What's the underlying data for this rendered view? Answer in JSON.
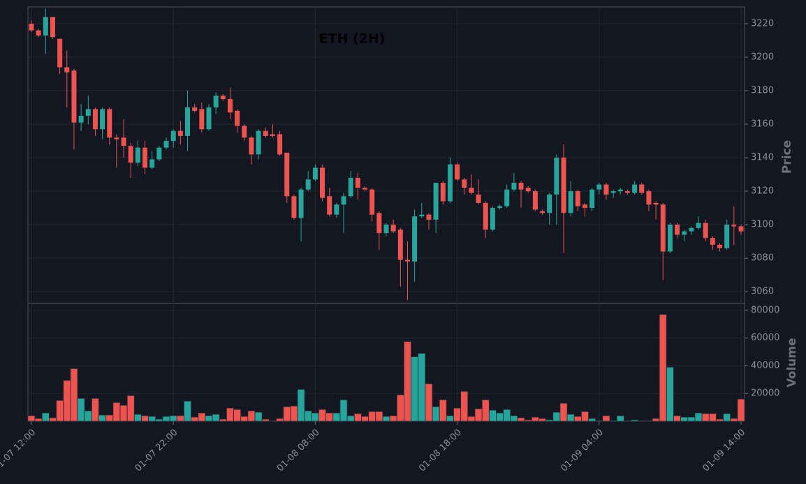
{
  "chart_data": {
    "type": "candlestick",
    "title": "ETH (2H)",
    "categories": [
      "01-07 12:00",
      null,
      null,
      null,
      null,
      null,
      null,
      null,
      null,
      null,
      null,
      null,
      null,
      null,
      null,
      null,
      null,
      null,
      null,
      null,
      "01-07 22:00",
      null,
      null,
      null,
      null,
      null,
      null,
      null,
      null,
      null,
      null,
      null,
      null,
      null,
      null,
      null,
      null,
      null,
      null,
      null,
      "01-08 08:00",
      null,
      null,
      null,
      null,
      null,
      null,
      null,
      null,
      null,
      null,
      null,
      null,
      null,
      null,
      null,
      null,
      null,
      null,
      null,
      "01-08 18:00",
      null,
      null,
      null,
      null,
      null,
      null,
      null,
      null,
      null,
      null,
      null,
      null,
      null,
      null,
      null,
      null,
      null,
      null,
      null,
      "01-09 04:00",
      null,
      null,
      null,
      null,
      null,
      null,
      null,
      null,
      null,
      null,
      null,
      null,
      null,
      null,
      null,
      null,
      null,
      null,
      null,
      "01-09 14:00"
    ],
    "open": [
      3220,
      3216,
      3213,
      3224,
      3211,
      3194,
      3192,
      3161,
      3165,
      3169,
      3157,
      3169,
      3152,
      3152,
      3147,
      3137,
      3146,
      3134,
      3139,
      3146,
      3150,
      3156,
      3153,
      3170,
      3169,
      3157,
      3170,
      3177,
      3175,
      3168,
      3159,
      3152,
      3142,
      3156,
      3154,
      3154,
      3143,
      3117,
      3104,
      3121,
      3127,
      3134,
      3117,
      3106,
      3112,
      3117,
      3128,
      3122,
      3121,
      3107,
      3095,
      3100,
      3097,
      3079,
      3078,
      3105,
      3106,
      3103,
      3125,
      3114,
      3136,
      3127,
      3122,
      3118,
      3113,
      3097,
      3110,
      3111,
      3121,
      3125,
      3122,
      3120,
      3108,
      3107,
      3118,
      3140,
      3107,
      3120,
      3112,
      3110,
      3121,
      3124,
      3119,
      3120,
      3120,
      3119,
      3124,
      3120,
      3113,
      3112,
      3084,
      3100,
      3094,
      3096,
      3098,
      3101,
      3092,
      3088,
      3086,
      3100,
      3099
    ],
    "high": [
      3222,
      3217,
      3229,
      3224,
      3211,
      3204,
      3193,
      3172,
      3177,
      3170,
      3170,
      3170,
      3154,
      3163,
      3149,
      3150,
      3150,
      3144,
      3147,
      3152,
      3157,
      3162,
      3180,
      3172,
      3173,
      3172,
      3179,
      3178,
      3182,
      3169,
      3160,
      3153,
      3157,
      3158,
      3160,
      3156,
      3143,
      3118,
      3122,
      3132,
      3136,
      3136,
      3122,
      3113,
      3119,
      3132,
      3131,
      3123,
      3122,
      3108,
      3101,
      3103,
      3098,
      3090,
      3109,
      3113,
      3107,
      3125,
      3126,
      3140,
      3137,
      3128,
      3130,
      3127,
      3114,
      3111,
      3112,
      3124,
      3131,
      3126,
      3123,
      3121,
      3109,
      3119,
      3142,
      3148,
      3126,
      3121,
      3113,
      3122,
      3125,
      3125,
      3121,
      3122,
      3121,
      3126,
      3125,
      3121,
      3114,
      3113,
      3101,
      3101,
      3097,
      3099,
      3105,
      3103,
      3093,
      3089,
      3103,
      3111,
      3100
    ],
    "low": [
      3215,
      3212,
      3202,
      3211,
      3190,
      3170,
      3145,
      3156,
      3160,
      3153,
      3151,
      3148,
      3134,
      3140,
      3128,
      3135,
      3130,
      3133,
      3138,
      3145,
      3146,
      3148,
      3144,
      3167,
      3155,
      3156,
      3166,
      3174,
      3163,
      3155,
      3150,
      3136,
      3139,
      3152,
      3152,
      3141,
      3113,
      3103,
      3090,
      3120,
      3126,
      3114,
      3105,
      3104,
      3095,
      3116,
      3115,
      3120,
      3102,
      3085,
      3093,
      3095,
      3063,
      3055,
      3066,
      3104,
      3097,
      3095,
      3112,
      3113,
      3126,
      3118,
      3118,
      3112,
      3092,
      3096,
      3109,
      3110,
      3120,
      3110,
      3119,
      3108,
      3106,
      3100,
      3100,
      3083,
      3105,
      3108,
      3105,
      3108,
      3118,
      3115,
      3116,
      3118,
      3118,
      3118,
      3118,
      3108,
      3103,
      3067,
      3083,
      3092,
      3090,
      3094,
      3097,
      3090,
      3085,
      3084,
      3085,
      3088,
      3094
    ],
    "close": [
      3216,
      3213,
      3224,
      3212,
      3194,
      3191,
      3161,
      3165,
      3169,
      3157,
      3169,
      3152,
      3151,
      3147,
      3137,
      3146,
      3134,
      3139,
      3146,
      3150,
      3156,
      3153,
      3170,
      3168,
      3157,
      3170,
      3177,
      3175,
      3167,
      3159,
      3152,
      3142,
      3156,
      3153,
      3153,
      3142,
      3117,
      3104,
      3121,
      3127,
      3134,
      3116,
      3106,
      3112,
      3117,
      3128,
      3122,
      3121,
      3106,
      3095,
      3100,
      3096,
      3079,
      3078,
      3105,
      3106,
      3103,
      3125,
      3114,
      3136,
      3127,
      3122,
      3119,
      3113,
      3097,
      3110,
      3111,
      3121,
      3125,
      3121,
      3120,
      3109,
      3107,
      3118,
      3140,
      3107,
      3120,
      3111,
      3110,
      3121,
      3124,
      3118,
      3120,
      3121,
      3119,
      3124,
      3119,
      3112,
      3112,
      3084,
      3100,
      3094,
      3096,
      3098,
      3101,
      3092,
      3088,
      3086,
      3100,
      3099,
      3096
    ],
    "ylim": [
      3053,
      3230
    ],
    "yticks": [
      3060,
      3080,
      3100,
      3120,
      3140,
      3160,
      3180,
      3200,
      3220
    ],
    "ylabel": "Price",
    "up_color": "#26a69a",
    "down_color": "#ef5350",
    "grid": true,
    "volume": {
      "label": "Volume",
      "values": [
        4000,
        2000,
        6000,
        2500,
        15000,
        29500,
        38000,
        16500,
        7500,
        16500,
        4500,
        4500,
        13500,
        11500,
        18500,
        5000,
        4000,
        3500,
        1500,
        3500,
        4000,
        4000,
        14500,
        3000,
        6000,
        4000,
        5000,
        1500,
        9500,
        8500,
        3500,
        7500,
        6500,
        1500,
        500,
        2000,
        10500,
        11000,
        23000,
        7500,
        6000,
        8500,
        6000,
        6000,
        15500,
        4000,
        5500,
        3500,
        7000,
        7000,
        3500,
        4000,
        19000,
        57500,
        46500,
        49000,
        27000,
        10500,
        15500,
        4000,
        9500,
        21500,
        3500,
        9000,
        15500,
        8000,
        6000,
        8500,
        4000,
        2500,
        1000,
        3000,
        2000,
        1000,
        6500,
        13000,
        5000,
        3500,
        7000,
        2000,
        500,
        4000,
        500,
        4000,
        500,
        1000,
        500,
        500,
        2000,
        77000,
        39000,
        4000,
        3000,
        3000,
        6000,
        5500,
        5500,
        1500,
        5500,
        2000,
        16000
      ],
      "ylim": [
        0,
        85000
      ],
      "yticks": [
        20000,
        40000,
        60000,
        80000
      ]
    }
  }
}
